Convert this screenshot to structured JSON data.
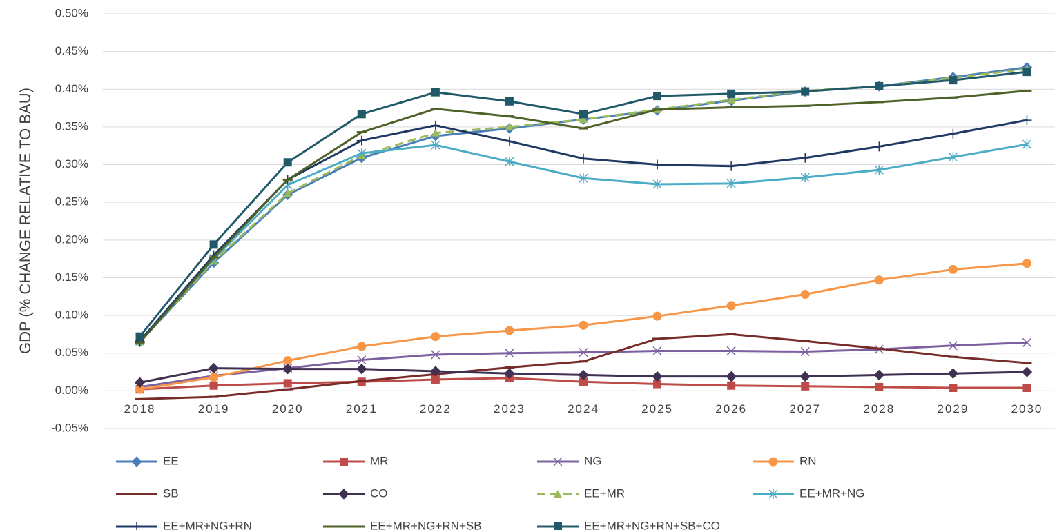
{
  "chart_data": {
    "type": "line",
    "y_label": "GDP (% CHANGE RELATIVE TO BAU)",
    "categories": [
      "2018",
      "2019",
      "2020",
      "2021",
      "2022",
      "2023",
      "2024",
      "2025",
      "2026",
      "2027",
      "2028",
      "2029",
      "2030"
    ],
    "ylim": [
      -0.05,
      0.5
    ],
    "yticks": [
      {
        "value": -0.05,
        "label": "-0.05%"
      },
      {
        "value": 0,
        "label": "0.00%"
      },
      {
        "value": 0.05,
        "label": "0.05%"
      },
      {
        "value": 0.1,
        "label": "0.10%"
      },
      {
        "value": 0.15,
        "label": "0.15%"
      },
      {
        "value": 0.2,
        "label": "0.20%"
      },
      {
        "value": 0.25,
        "label": "0.25%"
      },
      {
        "value": 0.3,
        "label": "0.30%"
      },
      {
        "value": 0.35,
        "label": "0.35%"
      },
      {
        "value": 0.4,
        "label": "0.40%"
      },
      {
        "value": 0.45,
        "label": "0.45%"
      },
      {
        "value": 0.5,
        "label": "0.50%"
      }
    ],
    "grid": true,
    "legend": "bottom",
    "series": [
      {
        "name": "EE",
        "color": "#4a7ebb",
        "marker": "diamond",
        "values": [
          0.065,
          0.17,
          0.26,
          0.309,
          0.338,
          0.348,
          0.36,
          0.372,
          0.385,
          0.397,
          0.404,
          0.416,
          0.429
        ]
      },
      {
        "name": "MR",
        "color": "#be4b48",
        "marker": "square",
        "values": [
          0.002,
          0.007,
          0.01,
          0.012,
          0.015,
          0.017,
          0.012,
          0.009,
          0.007,
          0.006,
          0.005,
          0.004,
          0.004
        ]
      },
      {
        "name": "NG",
        "color": "#7d60a0",
        "marker": "x",
        "values": [
          0.005,
          0.02,
          0.03,
          0.041,
          0.048,
          0.05,
          0.051,
          0.053,
          0.053,
          0.052,
          0.055,
          0.06,
          0.064
        ]
      },
      {
        "name": "RN",
        "color": "#f79646",
        "marker": "circle",
        "values": [
          0.002,
          0.018,
          0.04,
          0.059,
          0.072,
          0.08,
          0.087,
          0.099,
          0.113,
          0.128,
          0.147,
          0.161,
          0.169
        ]
      },
      {
        "name": "SB",
        "color": "#772c2a",
        "marker": "dash",
        "values": [
          -0.011,
          -0.008,
          0.002,
          0.013,
          0.022,
          0.031,
          0.039,
          0.069,
          0.075,
          0.066,
          0.056,
          0.045,
          0.037
        ]
      },
      {
        "name": "CO",
        "color": "#3f3151",
        "marker": "diamond",
        "values": [
          0.011,
          0.03,
          0.029,
          0.029,
          0.026,
          0.023,
          0.021,
          0.019,
          0.019,
          0.019,
          0.021,
          0.023,
          0.025
        ]
      },
      {
        "name": "EE+MR",
        "color": "#9bbb59",
        "marker": "triangle",
        "dashed": true,
        "values": [
          0.065,
          0.172,
          0.262,
          0.312,
          0.342,
          0.35,
          0.36,
          0.373,
          0.386,
          0.398,
          0.404,
          0.415,
          0.427
        ]
      },
      {
        "name": "EE+MR+NG",
        "color": "#4bacc6",
        "marker": "star",
        "values": [
          0.066,
          0.175,
          0.273,
          0.315,
          0.326,
          0.304,
          0.282,
          0.274,
          0.275,
          0.283,
          0.293,
          0.31,
          0.327
        ]
      },
      {
        "name": "EE+MR+NG+RN",
        "color": "#1f3864",
        "marker": "plus",
        "values": [
          0.066,
          0.18,
          0.28,
          0.332,
          0.352,
          0.331,
          0.308,
          0.3,
          0.298,
          0.309,
          0.324,
          0.341,
          0.359
        ]
      },
      {
        "name": "EE+MR+NG+RN+SB",
        "color": "#4f6228",
        "marker": "dash",
        "values": [
          0.064,
          0.177,
          0.28,
          0.343,
          0.374,
          0.364,
          0.348,
          0.373,
          0.376,
          0.378,
          0.383,
          0.389,
          0.398
        ]
      },
      {
        "name": "EE+MR+NG+RN+SB+CO",
        "color": "#215968",
        "marker": "square",
        "values": [
          0.072,
          0.194,
          0.303,
          0.367,
          0.396,
          0.384,
          0.367,
          0.391,
          0.394,
          0.397,
          0.404,
          0.412,
          0.423
        ]
      }
    ]
  }
}
